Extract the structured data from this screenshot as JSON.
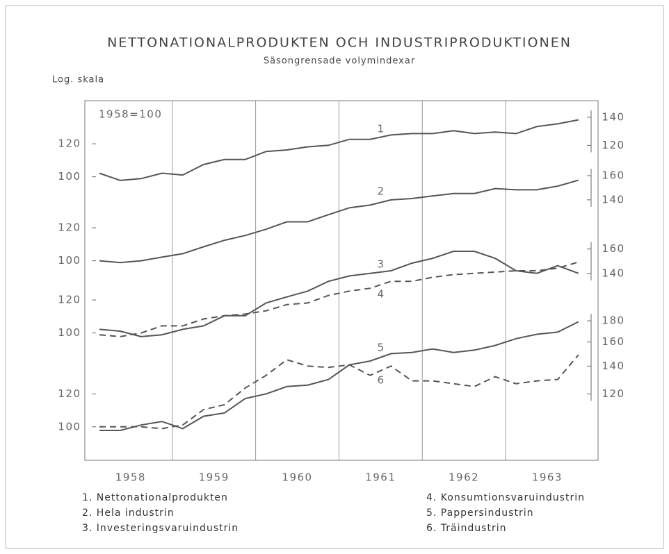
{
  "chart_data": {
    "type": "line",
    "title": "NETTONATIONALPRODUKTEN OCH INDUSTRIPRODUKTIONEN",
    "subtitle": "Säsongrensade volymindexar",
    "y_label": "Log. skala",
    "annotation": "1958=100",
    "log_scale": true,
    "grid": true,
    "categories": [
      "1958",
      "1959",
      "1960",
      "1961",
      "1962",
      "1963"
    ],
    "panels": [
      {
        "ylim": [
          85,
          150
        ],
        "yticks": [
          100,
          120
        ],
        "y2lim": [
          86,
          151
        ],
        "y2ticks": [
          120,
          140
        ],
        "series": [
          {
            "name": "1. Nettonationalprodukten",
            "label": "1",
            "color": "#555555",
            "dash": false,
            "values": [
              102,
              98,
              99,
              102,
              101,
              107,
              110,
              110,
              115,
              116,
              118,
              119,
              123,
              123,
              126,
              127,
              127,
              129,
              127,
              128,
              127,
              132,
              134,
              137
            ]
          }
        ]
      },
      {
        "ylim": [
          85,
          165
        ],
        "yticks": [
          100,
          120
        ],
        "y2lim": [
          85,
          165
        ],
        "y2ticks": [
          140,
          160
        ],
        "series": [
          {
            "name": "2. Hela industrin",
            "label": "2",
            "color": "#555555",
            "dash": false,
            "values": [
              100,
              99,
              100,
              102,
              104,
              108,
              112,
              115,
              119,
              124,
              124,
              129,
              134,
              136,
              140,
              141,
              143,
              145,
              145,
              149,
              148,
              148,
              151,
              156
            ]
          }
        ]
      },
      {
        "ylim": [
          85,
          165
        ],
        "yticks": [
          100,
          120
        ],
        "y2lim": [
          86,
          166
        ],
        "y2ticks": [
          140,
          160
        ],
        "series": [
          {
            "name": "3. Investeringsvaruindustrin",
            "label": "3",
            "color": "#555555",
            "dash": false,
            "values": [
              102,
              101,
              98,
              99,
              102,
              104,
              110,
              110,
              118,
              122,
              126,
              133,
              137,
              139,
              141,
              147,
              151,
              157,
              157,
              151,
              141,
              139,
              145,
              139
            ]
          },
          {
            "name": "4. Konsumtionsvaruindustrin",
            "label": "4",
            "color": "#555555",
            "dash": true,
            "values": [
              99,
              98,
              100,
              104,
              104,
              108,
              110,
              111,
              113,
              117,
              118,
              123,
              126,
              128,
              133,
              133,
              136,
              138,
              139,
              140,
              141,
              141,
              143,
              148
            ]
          }
        ]
      },
      {
        "ylim": [
          85,
          190
        ],
        "yticks": [
          100,
          120
        ],
        "y2lim": [
          85,
          190
        ],
        "y2ticks": [
          120,
          140,
          160,
          180
        ],
        "series": [
          {
            "name": "5. Pappersindustrin",
            "label": "5",
            "color": "#555555",
            "dash": false,
            "values": [
              98,
              98,
              101,
              103,
              99,
              106,
              108,
              117,
              120,
              125,
              126,
              130,
              141,
              144,
              150,
              151,
              154,
              151,
              153,
              157,
              163,
              167,
              169,
              179
            ]
          },
          {
            "name": "6. Träindustrin",
            "label": "6",
            "color": "#555555",
            "dash": true,
            "values": [
              100,
              100,
              100,
              99,
              101,
              110,
              113,
              124,
              133,
              145,
              140,
              139,
              141,
              133,
              140,
              129,
              129,
              127,
              125,
              132,
              127,
              129,
              130,
              149
            ]
          }
        ]
      }
    ]
  }
}
